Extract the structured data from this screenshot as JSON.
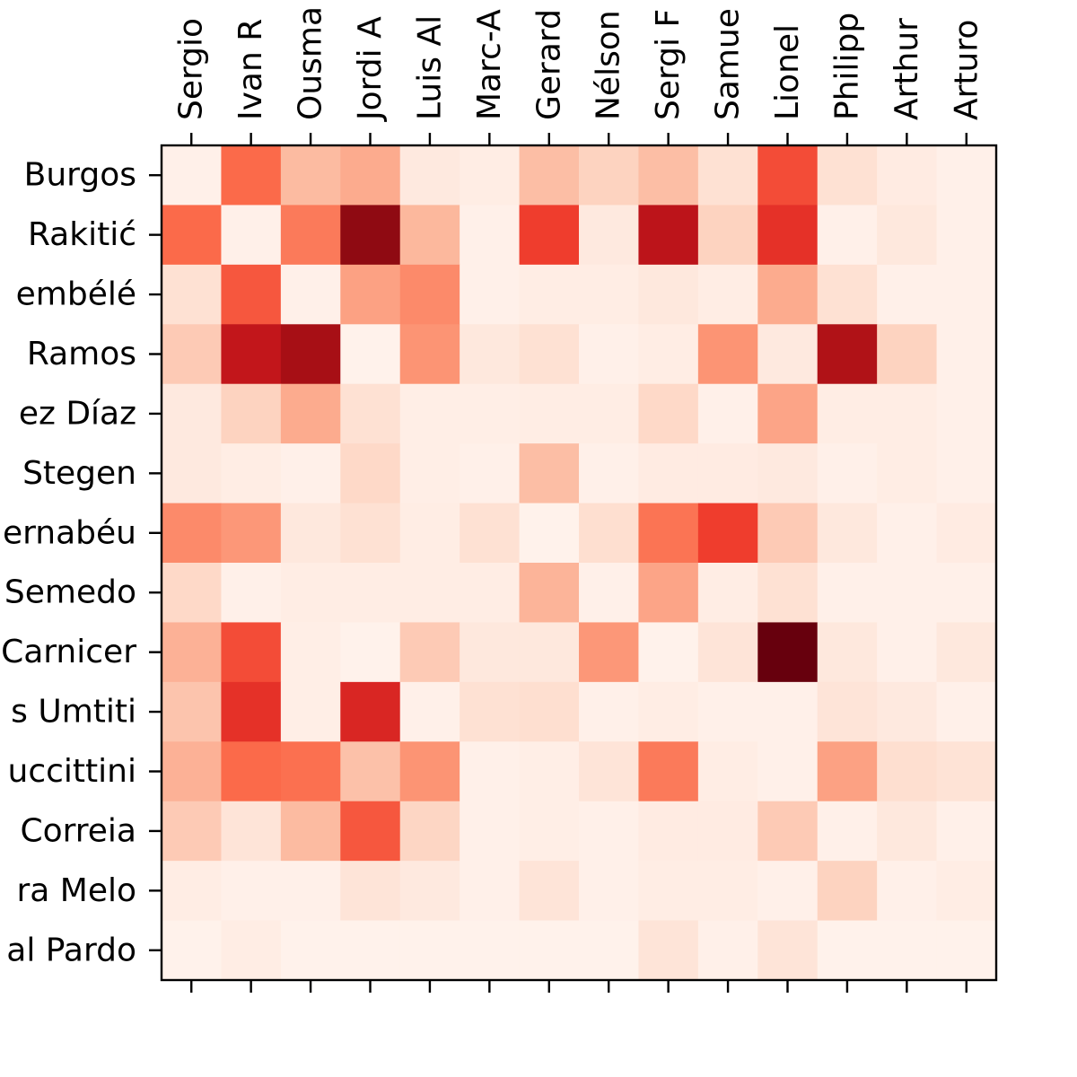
{
  "chart_data": {
    "type": "heatmap",
    "colormap": "Reds",
    "x_tick_labels": [
      "Sergio",
      "Ivan R",
      "Ousma",
      "Jordi A",
      "Luis Al",
      "Marc-A",
      "Gerard",
      "Nélson",
      "Sergi F",
      "Samue",
      "Lionel",
      "Philipp",
      "Arthur",
      "Arturo"
    ],
    "y_tick_labels": [
      "Burgos",
      "Rakitić",
      "embélé",
      "Ramos",
      "ez Díaz",
      "Stegen",
      "ernabéu",
      "Semedo",
      "Carnicer",
      "s Umtiti",
      "uccittini",
      "Correia",
      "ra Melo",
      "al Pardo"
    ],
    "values": [
      [
        0.03,
        0.5,
        0.25,
        0.3,
        0.07,
        0.05,
        0.24,
        0.17,
        0.24,
        0.12,
        0.58,
        0.12,
        0.06,
        0.03
      ],
      [
        0.5,
        0.03,
        0.45,
        0.92,
        0.26,
        0.03,
        0.62,
        0.07,
        0.8,
        0.17,
        0.66,
        0.03,
        0.08,
        0.03
      ],
      [
        0.12,
        0.55,
        0.03,
        0.33,
        0.4,
        0.03,
        0.05,
        0.05,
        0.08,
        0.05,
        0.3,
        0.12,
        0.03,
        0.03
      ],
      [
        0.2,
        0.78,
        0.87,
        0.02,
        0.37,
        0.08,
        0.12,
        0.03,
        0.05,
        0.37,
        0.07,
        0.84,
        0.17,
        0.03
      ],
      [
        0.07,
        0.17,
        0.3,
        0.12,
        0.04,
        0.04,
        0.05,
        0.05,
        0.15,
        0.03,
        0.32,
        0.05,
        0.05,
        0.03
      ],
      [
        0.07,
        0.05,
        0.03,
        0.15,
        0.04,
        0.03,
        0.24,
        0.03,
        0.06,
        0.06,
        0.07,
        0.03,
        0.05,
        0.03
      ],
      [
        0.4,
        0.36,
        0.08,
        0.12,
        0.05,
        0.12,
        0.02,
        0.13,
        0.47,
        0.62,
        0.2,
        0.08,
        0.03,
        0.06
      ],
      [
        0.15,
        0.03,
        0.05,
        0.05,
        0.05,
        0.05,
        0.27,
        0.03,
        0.32,
        0.05,
        0.12,
        0.03,
        0.03,
        0.03
      ],
      [
        0.28,
        0.58,
        0.04,
        0.02,
        0.2,
        0.08,
        0.08,
        0.36,
        0.02,
        0.1,
        1.0,
        0.08,
        0.03,
        0.08
      ],
      [
        0.22,
        0.66,
        0.04,
        0.7,
        0.03,
        0.12,
        0.13,
        0.03,
        0.05,
        0.03,
        0.03,
        0.1,
        0.07,
        0.03
      ],
      [
        0.28,
        0.5,
        0.48,
        0.23,
        0.37,
        0.03,
        0.04,
        0.1,
        0.45,
        0.05,
        0.03,
        0.33,
        0.13,
        0.11
      ],
      [
        0.2,
        0.1,
        0.25,
        0.55,
        0.16,
        0.03,
        0.04,
        0.03,
        0.06,
        0.06,
        0.2,
        0.03,
        0.08,
        0.03
      ],
      [
        0.05,
        0.03,
        0.03,
        0.1,
        0.07,
        0.03,
        0.1,
        0.03,
        0.05,
        0.05,
        0.03,
        0.17,
        0.03,
        0.05
      ],
      [
        0.02,
        0.05,
        0.02,
        0.02,
        0.02,
        0.02,
        0.02,
        0.02,
        0.1,
        0.03,
        0.1,
        0.02,
        0.02,
        0.02
      ]
    ],
    "color_range": [
      0,
      1
    ],
    "grid": false,
    "legend": "none"
  }
}
